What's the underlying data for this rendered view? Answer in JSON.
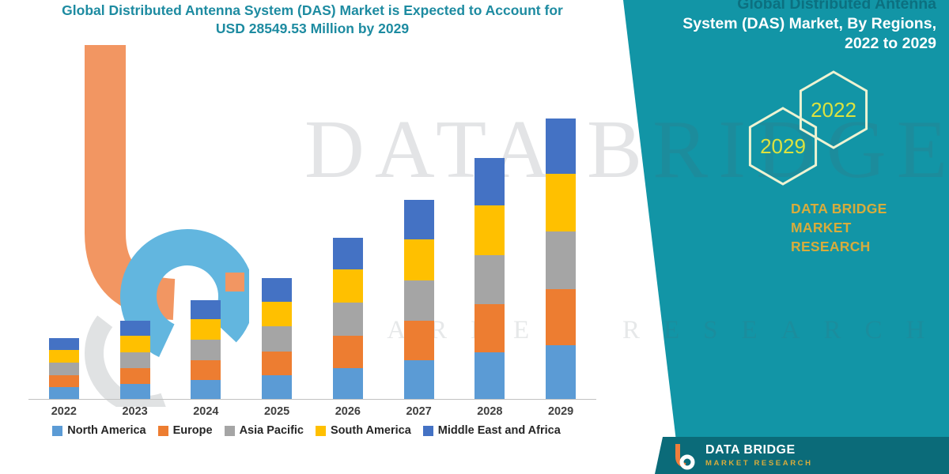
{
  "title": {
    "line1": "Global Distributed Antenna System (DAS) Market is Expected to Account for",
    "line2": "USD 28549.53 Million by 2029"
  },
  "side_panel": {
    "heading_line1": "Global Distributed Antenna",
    "heading_line2": "System (DAS) Market, By Regions,",
    "heading_line3": "2022 to 2029",
    "hex_year_back": "2029",
    "hex_year_front": "2022",
    "brand_line1": "DATA BRIDGE MARKET",
    "brand_line2": "RESEARCH",
    "colors": {
      "panel": "#1295a6",
      "footer_strip": "#0b6b79",
      "gold": "#d8ac3c",
      "hex_year_text": "#dce23f",
      "title_teal": "#1d8ba1"
    }
  },
  "watermark": {
    "line1": "DATA BRIDGE",
    "line2": "MARKET RESEARCH"
  },
  "footer": {
    "brand": "DATA BRIDGE",
    "sub": "MARKET RESEARCH"
  },
  "chart_data": {
    "type": "bar",
    "stacked": true,
    "title": "Global Distributed Antenna System (DAS) Market is Expected to Account for USD 28549.53 Million by 2029",
    "unit": "USD Million",
    "xlabel": "",
    "ylabel": "",
    "y_axis_visible": false,
    "grid": false,
    "legend_position": "bottom",
    "total_2029": 28549.53,
    "categories": [
      "2022",
      "2023",
      "2024",
      "2025",
      "2026",
      "2027",
      "2028",
      "2029"
    ],
    "totals_estimated": [
      6230,
      8020,
      10070,
      12320,
      16440,
      20240,
      24520,
      28549.53
    ],
    "series": [
      {
        "name": "North America",
        "color": "#5b9bd5",
        "values": [
          1202,
          1548,
          1944,
          2378,
          3173,
          3906,
          4732,
          5510
        ]
      },
      {
        "name": "Europe",
        "color": "#ed7d31",
        "values": [
          1246,
          1604,
          2014,
          2464,
          3288,
          4048,
          4904,
          5710
        ]
      },
      {
        "name": "Asia Pacific",
        "color": "#a5a5a5",
        "values": [
          1277,
          1644,
          2064,
          2526,
          3370,
          4149,
          5027,
          5853
        ]
      },
      {
        "name": "South America",
        "color": "#ffc000",
        "values": [
          1277,
          1644,
          2064,
          2526,
          3370,
          4149,
          5027,
          5853
        ]
      },
      {
        "name": "Middle East and Africa",
        "color": "#4472c4",
        "values": [
          1228,
          1580,
          1984,
          2426,
          3239,
          3988,
          4830,
          5623.53
        ]
      }
    ]
  }
}
